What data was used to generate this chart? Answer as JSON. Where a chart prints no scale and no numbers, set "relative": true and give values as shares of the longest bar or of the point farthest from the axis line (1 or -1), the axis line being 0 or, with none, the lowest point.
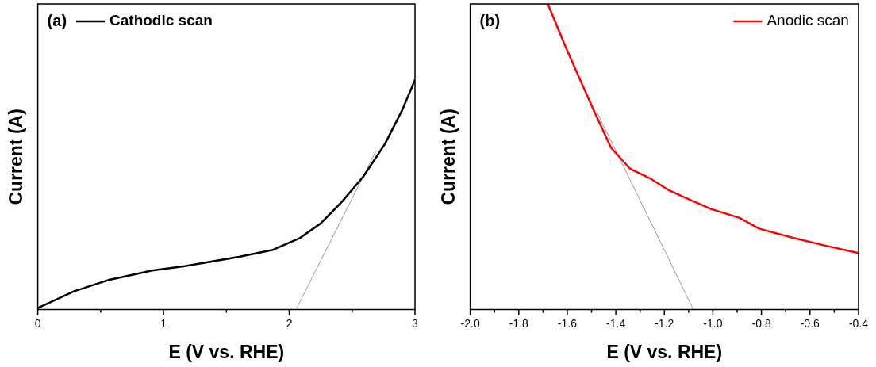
{
  "chart_data": [
    {
      "type": "line",
      "xlabel": "E (V vs. RHE)",
      "ylabel": "Current (A)",
      "relative": true,
      "tick_labels": "x",
      "legend": "top left",
      "annotations": [
        "(a)"
      ],
      "xlim": [
        0,
        3
      ],
      "xticks": [
        0,
        {
          "value": 0.5,
          "label": null
        },
        1,
        {
          "value": 1.5,
          "label": null
        },
        2,
        {
          "value": 2.5,
          "label": null
        },
        3
      ],
      "series": [
        {
          "name": "Cathodic scan",
          "color": "#000000",
          "x": [
            0,
            0.29,
            0.57,
            0.91,
            1.18,
            1.6,
            1.87,
            2.08,
            2.25,
            2.42,
            2.59,
            2.76,
            2.9,
            3
          ],
          "values": [
            0.007,
            0.08,
            0.13,
            0.17,
            0.19,
            0.23,
            0.26,
            0.31,
            0.375,
            0.47,
            0.58,
            0.72,
            0.87,
            1
          ]
        },
        {
          "type": "line",
          "color": "#808080",
          "x": [
            2.06,
            2.69
          ],
          "values": [
            0.007,
            0.69
          ]
        }
      ]
    },
    {
      "type": "line",
      "xlabel": "E (V vs. RHE)",
      "ylabel": "Current (A)",
      "relative": true,
      "tick_labels": "x",
      "legend": "top right",
      "annotations": [
        "(b)"
      ],
      "xlim": [
        -2,
        -0.4
      ],
      "xticks": [
        {
          "value": -2,
          "label": "-2.0"
        },
        {
          "value": -1.9,
          "label": null
        },
        {
          "value": -1.8,
          "label": "-1.8"
        },
        {
          "value": -1.7,
          "label": null
        },
        {
          "value": -1.6,
          "label": "-1.6"
        },
        {
          "value": -1.5,
          "label": null
        },
        {
          "value": -1.4,
          "label": "-1.4"
        },
        {
          "value": -1.3,
          "label": null
        },
        {
          "value": -1.2,
          "label": "-1.2"
        },
        {
          "value": -1.1,
          "label": null
        },
        {
          "value": -1,
          "label": "-1.0"
        },
        {
          "value": -0.9,
          "label": null
        },
        {
          "value": -0.8,
          "label": "-0.8"
        },
        {
          "value": -0.7,
          "label": null
        },
        {
          "value": -0.6,
          "label": "-0.6"
        },
        {
          "value": -0.5,
          "label": null
        },
        {
          "value": -0.4,
          "label": "-0.4"
        }
      ],
      "series": [
        {
          "name": "Anodic scan",
          "color": "#ff0000",
          "x": [
            -1.68,
            -1.61,
            -1.55,
            -1.49,
            -1.42,
            -1.34,
            -1.26,
            -1.18,
            -1.11,
            -1.01,
            -0.89,
            -0.81,
            -0.67,
            -0.54,
            -0.4
          ],
          "values": [
            1,
            0.865,
            0.757,
            0.65,
            0.53,
            0.46,
            0.43,
            0.39,
            0.365,
            0.33,
            0.3,
            0.265,
            0.235,
            0.21,
            0.185
          ]
        },
        {
          "type": "line",
          "color": "#808080",
          "x": [
            -1.48,
            -1.08
          ],
          "values": [
            0.65,
            0
          ]
        }
      ]
    }
  ]
}
